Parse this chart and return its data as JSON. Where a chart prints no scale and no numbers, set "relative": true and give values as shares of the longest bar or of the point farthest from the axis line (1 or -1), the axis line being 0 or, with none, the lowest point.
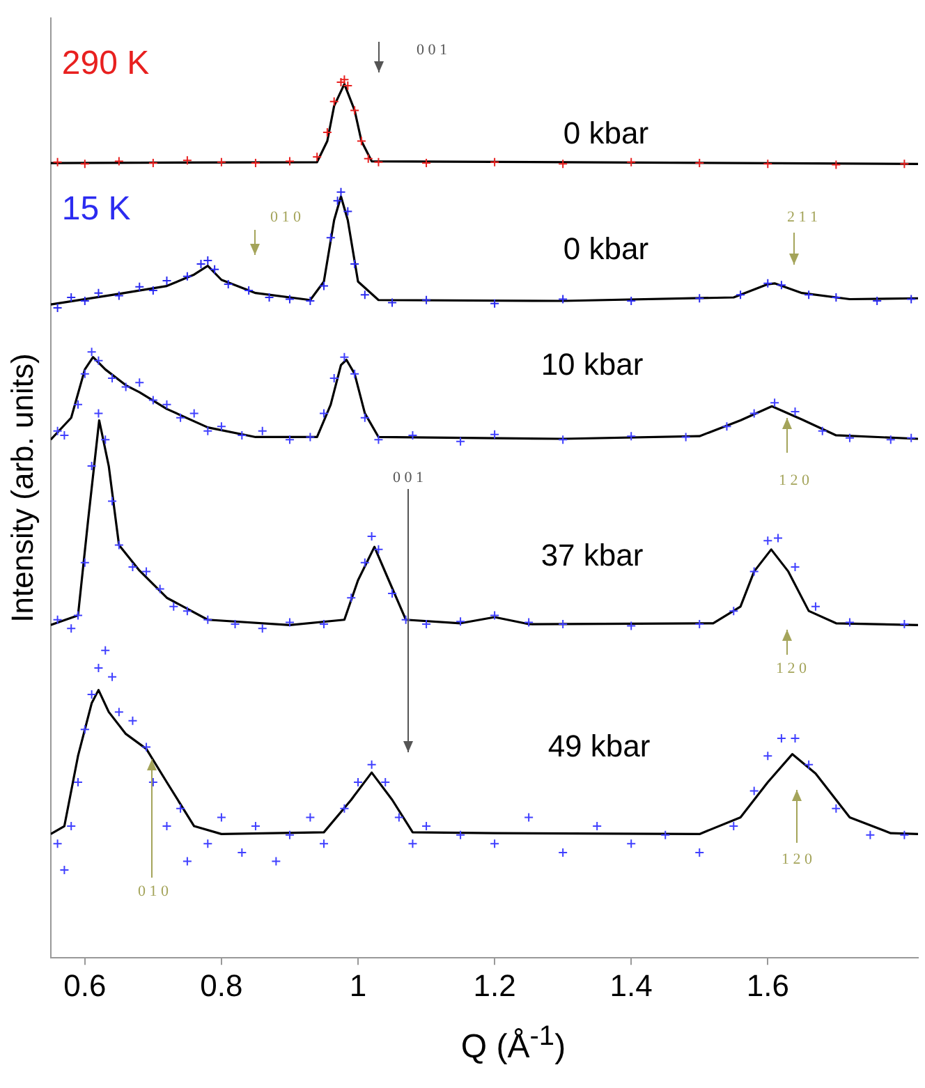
{
  "chart_data": {
    "type": "scatter",
    "xlabel": "Q (Å$^{-1}$)",
    "ylabel": "Intensity (arb. units)",
    "relative": true,
    "xlim": [
      0.55,
      1.82
    ],
    "xticks": [
      0.6,
      0.8,
      1,
      1.2,
      1.4,
      1.6
    ],
    "tick_labels": "x",
    "grid": false,
    "legend": false,
    "annotations": [
      "0 kbar",
      "0 kbar",
      "10 kbar",
      "37 kbar",
      "49 kbar",
      "0 0 1",
      "0 1 0",
      "2 1 1",
      "1 2 0",
      "0 0 1",
      "1 2 0",
      "0 1 0",
      "1 2 0"
    ],
    "series": [
      {
        "marker": "cross",
        "name": "290 K",
        "color": "#e8201f",
        "x": [
          0.56,
          0.6,
          0.65,
          0.7,
          0.75,
          0.8,
          0.85,
          0.9,
          0.94,
          0.955,
          0.965,
          0.975,
          0.98,
          0.985,
          0.995,
          1.005,
          1.015,
          1.03,
          1.1,
          1.2,
          1.3,
          1.4,
          1.5,
          1.6,
          1.7,
          1.8
        ],
        "values": [
          0.906,
          0.904,
          0.907,
          0.905,
          0.908,
          0.906,
          0.905,
          0.907,
          0.912,
          0.94,
          0.975,
          0.997,
          1.0,
          0.993,
          0.965,
          0.93,
          0.91,
          0.906,
          0.905,
          0.906,
          0.904,
          0.906,
          0.905,
          0.904,
          0.903,
          0.904
        ]
      },
      {
        "type": "line",
        "color": "#000000",
        "x": [
          0.55,
          0.94,
          0.955,
          0.965,
          0.98,
          0.995,
          1.005,
          1.02,
          1.82
        ],
        "values": [
          0.905,
          0.906,
          0.93,
          0.97,
          0.995,
          0.965,
          0.93,
          0.907,
          0.904
        ]
      },
      {
        "marker": "cross",
        "name": "15 K",
        "color": "#2b2bf0",
        "x": [
          0.56,
          0.58,
          0.6,
          0.62,
          0.65,
          0.68,
          0.7,
          0.72,
          0.75,
          0.77,
          0.78,
          0.79,
          0.81,
          0.84,
          0.87,
          0.9,
          0.93,
          0.95,
          0.96,
          0.97,
          0.975,
          0.985,
          0.995,
          1.01,
          1.05,
          1.1,
          1.2,
          1.3,
          1.4,
          1.5,
          1.56,
          1.6,
          1.62,
          1.66,
          1.7,
          1.76,
          1.81
        ],
        "values": [
          0.74,
          0.752,
          0.748,
          0.757,
          0.754,
          0.764,
          0.76,
          0.771,
          0.776,
          0.79,
          0.794,
          0.784,
          0.767,
          0.76,
          0.752,
          0.75,
          0.748,
          0.765,
          0.82,
          0.862,
          0.872,
          0.85,
          0.79,
          0.755,
          0.746,
          0.749,
          0.745,
          0.75,
          0.748,
          0.751,
          0.755,
          0.768,
          0.766,
          0.755,
          0.752,
          0.748,
          0.75
        ]
      },
      {
        "type": "line",
        "color": "#000000",
        "x": [
          0.55,
          0.65,
          0.72,
          0.76,
          0.78,
          0.8,
          0.85,
          0.93,
          0.95,
          0.965,
          0.975,
          0.985,
          1.0,
          1.03,
          1.3,
          1.55,
          1.6,
          1.61,
          1.65,
          1.72,
          1.82
        ],
        "values": [
          0.744,
          0.756,
          0.765,
          0.778,
          0.788,
          0.772,
          0.757,
          0.749,
          0.77,
          0.84,
          0.867,
          0.84,
          0.77,
          0.749,
          0.748,
          0.752,
          0.767,
          0.768,
          0.757,
          0.75,
          0.751
        ]
      },
      {
        "marker": "cross",
        "color": "#4040ff",
        "x": [
          0.56,
          0.57,
          0.59,
          0.6,
          0.61,
          0.62,
          0.64,
          0.66,
          0.68,
          0.7,
          0.72,
          0.74,
          0.76,
          0.78,
          0.8,
          0.83,
          0.86,
          0.9,
          0.93,
          0.95,
          0.965,
          0.98,
          0.995,
          1.01,
          1.03,
          1.08,
          1.15,
          1.2,
          1.3,
          1.4,
          1.48,
          1.54,
          1.58,
          1.61,
          1.64,
          1.68,
          1.72,
          1.78,
          1.81
        ],
        "values": [
          0.6,
          0.595,
          0.63,
          0.665,
          0.69,
          0.68,
          0.66,
          0.65,
          0.655,
          0.635,
          0.63,
          0.615,
          0.62,
          0.6,
          0.605,
          0.595,
          0.6,
          0.59,
          0.593,
          0.62,
          0.66,
          0.684,
          0.665,
          0.615,
          0.59,
          0.595,
          0.588,
          0.596,
          0.59,
          0.594,
          0.593,
          0.605,
          0.62,
          0.632,
          0.622,
          0.6,
          0.592,
          0.59,
          0.592
        ]
      },
      {
        "type": "line",
        "color": "#000000",
        "x": [
          0.55,
          0.58,
          0.6,
          0.612,
          0.63,
          0.66,
          0.68,
          0.72,
          0.78,
          0.85,
          0.94,
          0.96,
          0.975,
          0.983,
          0.995,
          1.01,
          1.03,
          1.3,
          1.5,
          1.56,
          1.606,
          1.65,
          1.7,
          1.82
        ],
        "values": [
          0.59,
          0.615,
          0.67,
          0.684,
          0.67,
          0.652,
          0.644,
          0.625,
          0.604,
          0.593,
          0.593,
          0.63,
          0.675,
          0.681,
          0.665,
          0.62,
          0.593,
          0.591,
          0.594,
          0.612,
          0.628,
          0.613,
          0.595,
          0.591
        ]
      },
      {
        "marker": "cross",
        "color": "#4040ff",
        "x": [
          0.56,
          0.58,
          0.59,
          0.6,
          0.61,
          0.62,
          0.63,
          0.64,
          0.65,
          0.67,
          0.69,
          0.71,
          0.73,
          0.75,
          0.78,
          0.82,
          0.86,
          0.9,
          0.95,
          0.99,
          1.01,
          1.02,
          1.03,
          1.05,
          1.07,
          1.1,
          1.15,
          1.2,
          1.25,
          1.3,
          1.4,
          1.5,
          1.55,
          1.58,
          1.6,
          1.615,
          1.64,
          1.67,
          1.72,
          1.8
        ],
        "values": [
          0.385,
          0.375,
          0.39,
          0.45,
          0.56,
          0.62,
          0.59,
          0.52,
          0.47,
          0.445,
          0.44,
          0.42,
          0.4,
          0.395,
          0.385,
          0.38,
          0.375,
          0.382,
          0.38,
          0.41,
          0.45,
          0.48,
          0.465,
          0.415,
          0.385,
          0.38,
          0.383,
          0.39,
          0.382,
          0.38,
          0.378,
          0.38,
          0.395,
          0.44,
          0.475,
          0.478,
          0.445,
          0.4,
          0.382,
          0.38
        ]
      },
      {
        "type": "line",
        "color": "#000000",
        "x": [
          0.55,
          0.59,
          0.605,
          0.621,
          0.635,
          0.65,
          0.68,
          0.72,
          0.78,
          0.9,
          0.98,
          1.0,
          1.024,
          1.045,
          1.07,
          1.15,
          1.2,
          1.25,
          1.52,
          1.56,
          1.58,
          1.605,
          1.63,
          1.66,
          1.7,
          1.82
        ],
        "values": [
          0.379,
          0.39,
          0.5,
          0.612,
          0.56,
          0.47,
          0.441,
          0.41,
          0.385,
          0.379,
          0.385,
          0.43,
          0.468,
          0.43,
          0.385,
          0.381,
          0.388,
          0.38,
          0.381,
          0.4,
          0.44,
          0.465,
          0.44,
          0.395,
          0.381,
          0.379
        ]
      },
      {
        "marker": "cross",
        "color": "#4040ff",
        "x": [
          0.56,
          0.57,
          0.58,
          0.59,
          0.6,
          0.61,
          0.62,
          0.63,
          0.64,
          0.65,
          0.67,
          0.69,
          0.7,
          0.72,
          0.74,
          0.75,
          0.78,
          0.8,
          0.83,
          0.85,
          0.88,
          0.9,
          0.93,
          0.95,
          0.98,
          1.0,
          1.02,
          1.04,
          1.06,
          1.08,
          1.1,
          1.15,
          1.2,
          1.25,
          1.3,
          1.35,
          1.4,
          1.45,
          1.5,
          1.55,
          1.58,
          1.6,
          1.62,
          1.64,
          1.66,
          1.7,
          1.75,
          1.8
        ],
        "values": [
          0.13,
          0.1,
          0.15,
          0.2,
          0.26,
          0.3,
          0.33,
          0.35,
          0.32,
          0.28,
          0.27,
          0.24,
          0.2,
          0.15,
          0.17,
          0.11,
          0.13,
          0.16,
          0.12,
          0.15,
          0.11,
          0.14,
          0.16,
          0.13,
          0.17,
          0.2,
          0.22,
          0.2,
          0.16,
          0.13,
          0.15,
          0.14,
          0.13,
          0.16,
          0.12,
          0.15,
          0.13,
          0.14,
          0.12,
          0.15,
          0.19,
          0.23,
          0.25,
          0.25,
          0.22,
          0.17,
          0.14,
          0.14
        ]
      },
      {
        "type": "line",
        "color": "#000000",
        "x": [
          0.55,
          0.57,
          0.59,
          0.61,
          0.62,
          0.635,
          0.66,
          0.69,
          0.72,
          0.76,
          0.8,
          0.95,
          0.99,
          1.02,
          1.05,
          1.08,
          1.2,
          1.5,
          1.56,
          1.6,
          1.636,
          1.67,
          1.72,
          1.78,
          1.82
        ],
        "values": [
          0.141,
          0.15,
          0.23,
          0.29,
          0.305,
          0.28,
          0.255,
          0.238,
          0.2,
          0.15,
          0.141,
          0.143,
          0.18,
          0.211,
          0.18,
          0.143,
          0.142,
          0.141,
          0.16,
          0.2,
          0.232,
          0.21,
          0.16,
          0.142,
          0.141
        ]
      }
    ]
  }
}
